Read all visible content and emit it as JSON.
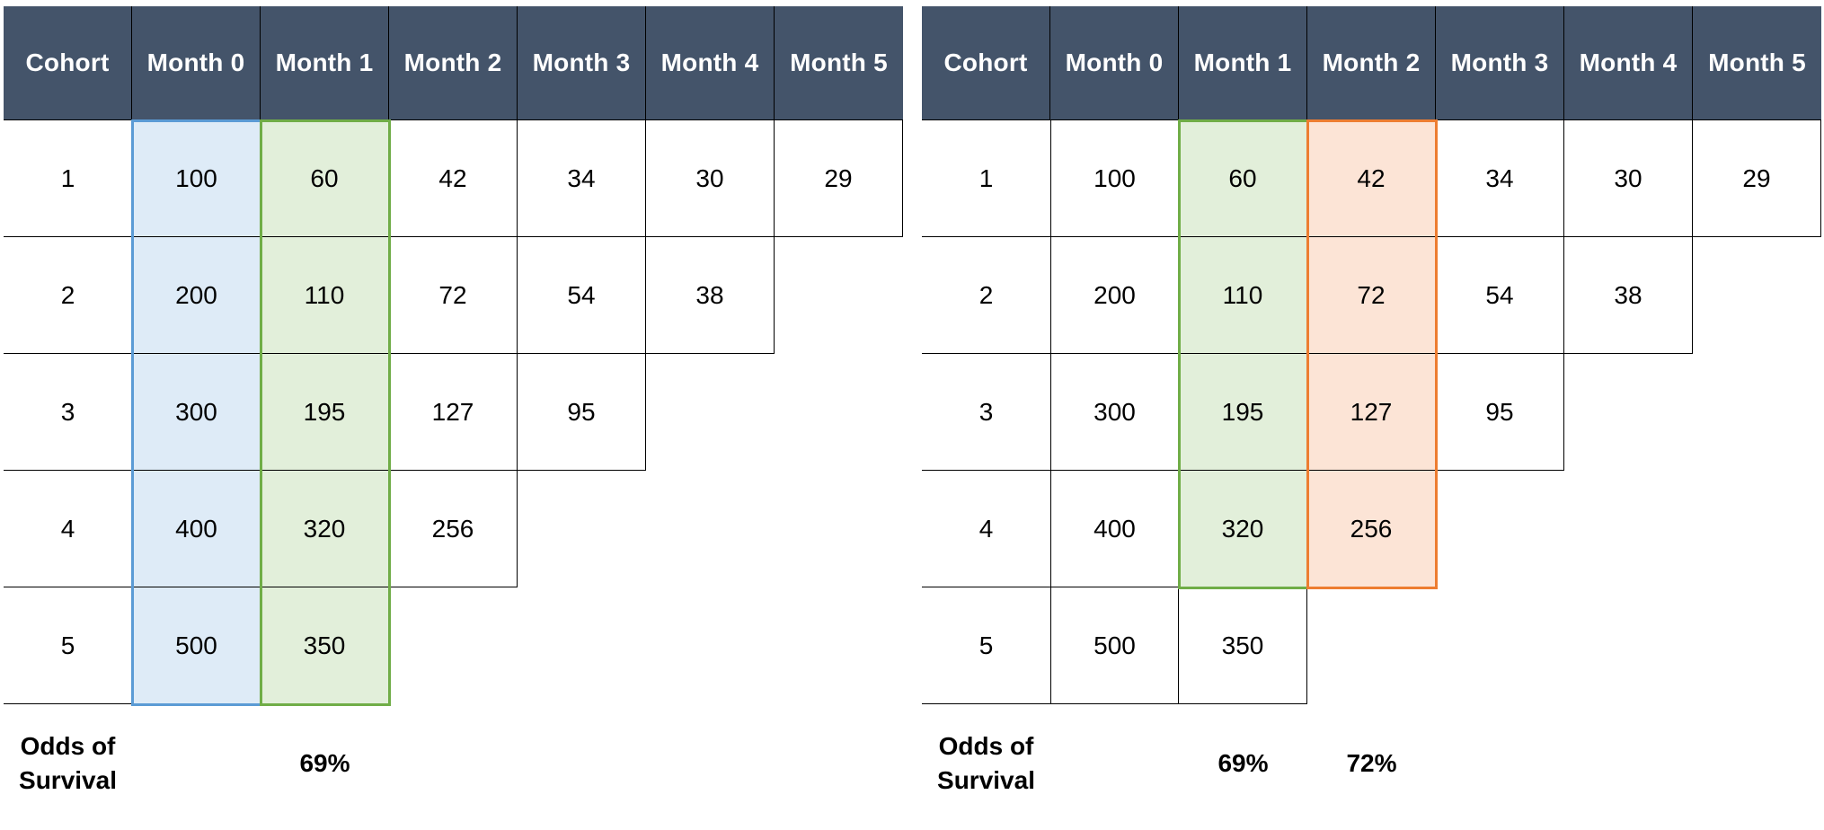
{
  "colors": {
    "header_bg": "#44546A",
    "header_text": "#FFFFFF",
    "grid_line": "#000000",
    "cell_text": "#000000",
    "background": "#FFFFFF",
    "blue_fill": "#DEEBF7",
    "blue_border": "#5B9BD5",
    "green_fill": "#E2EFDA",
    "green_border": "#70AD47",
    "orange_fill": "#FCE4D6",
    "orange_border": "#ED7D31"
  },
  "chart_data": [
    {
      "type": "table",
      "name": "cohort-survival-table-left",
      "columns": [
        "Cohort",
        "Month 0",
        "Month 1",
        "Month 2",
        "Month 3",
        "Month 4",
        "Month 5"
      ],
      "rows": [
        {
          "cohort": "1",
          "values": [
            100,
            60,
            42,
            34,
            30,
            29
          ]
        },
        {
          "cohort": "2",
          "values": [
            200,
            110,
            72,
            54,
            38
          ]
        },
        {
          "cohort": "3",
          "values": [
            300,
            195,
            127,
            95
          ]
        },
        {
          "cohort": "4",
          "values": [
            400,
            320,
            256
          ]
        },
        {
          "cohort": "5",
          "values": [
            500,
            350
          ]
        }
      ],
      "highlights": [
        {
          "name": "month-0-column-highlight",
          "col_index": 1,
          "rows": [
            1,
            5
          ],
          "fill_color": "#DEEBF7",
          "border_color": "#5B9BD5"
        },
        {
          "name": "month-1-column-highlight",
          "col_index": 2,
          "rows": [
            1,
            5
          ],
          "fill_color": "#E2EFDA",
          "border_color": "#70AD47"
        }
      ],
      "footer": {
        "label": "Odds of Survival",
        "values": [
          {
            "col_index": 2,
            "text": "69%"
          }
        ]
      }
    },
    {
      "type": "table",
      "name": "cohort-survival-table-right",
      "columns": [
        "Cohort",
        "Month 0",
        "Month 1",
        "Month 2",
        "Month 3",
        "Month 4",
        "Month 5"
      ],
      "rows": [
        {
          "cohort": "1",
          "values": [
            100,
            60,
            42,
            34,
            30,
            29
          ]
        },
        {
          "cohort": "2",
          "values": [
            200,
            110,
            72,
            54,
            38
          ]
        },
        {
          "cohort": "3",
          "values": [
            300,
            195,
            127,
            95
          ]
        },
        {
          "cohort": "4",
          "values": [
            400,
            320,
            256
          ]
        },
        {
          "cohort": "5",
          "values": [
            500,
            350
          ]
        }
      ],
      "highlights": [
        {
          "name": "month-1-column-highlight",
          "col_index": 2,
          "rows": [
            1,
            4
          ],
          "fill_color": "#E2EFDA",
          "border_color": "#70AD47"
        },
        {
          "name": "month-2-column-highlight",
          "col_index": 3,
          "rows": [
            1,
            4
          ],
          "fill_color": "#FCE4D6",
          "border_color": "#ED7D31"
        }
      ],
      "footer": {
        "label": "Odds of Survival",
        "values": [
          {
            "col_index": 2,
            "text": "69%"
          },
          {
            "col_index": 3,
            "text": "72%"
          }
        ]
      }
    }
  ]
}
